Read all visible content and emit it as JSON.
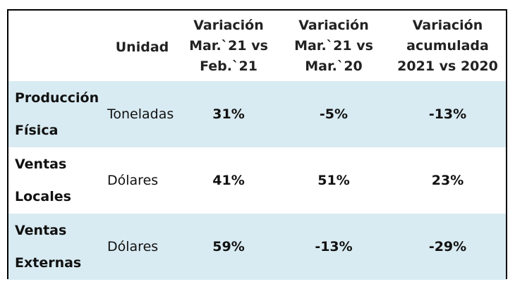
{
  "table": {
    "headers": {
      "concept": "",
      "unit": "Unidad",
      "col1": [
        "Variación",
        "Mar.`21 vs",
        "Feb.`21"
      ],
      "col2": [
        "Variación",
        "Mar.`21 vs",
        "Mar.`20"
      ],
      "col3": [
        "Variación",
        "acumulada",
        "2021 vs 2020"
      ]
    },
    "rows": [
      {
        "concept": [
          "Producción",
          "Física"
        ],
        "unit": "Toneladas",
        "values": [
          "31%",
          "-5%",
          "-13%"
        ]
      },
      {
        "concept": [
          "Ventas",
          "Locales"
        ],
        "unit": "Dólares",
        "values": [
          "41%",
          "51%",
          "23%"
        ]
      },
      {
        "concept": [
          "Ventas",
          "Externas"
        ],
        "unit": "Dólares",
        "values": [
          "59%",
          "-13%",
          "-29%"
        ]
      }
    ]
  },
  "colors": {
    "row_shade": "#d9ebf2",
    "border": "#000000"
  }
}
